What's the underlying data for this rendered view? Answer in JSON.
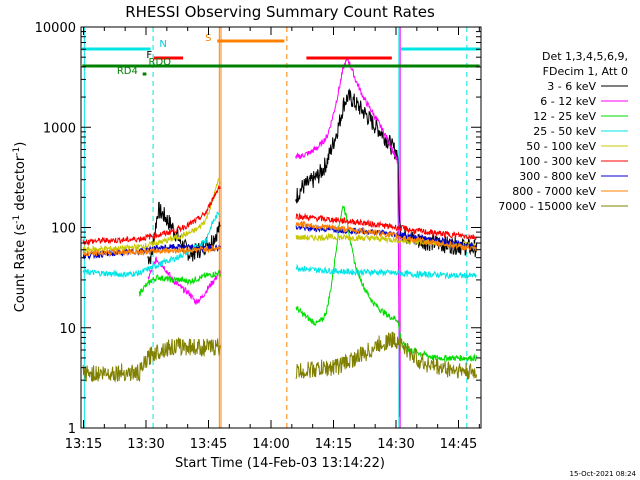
{
  "chart_data": {
    "type": "line",
    "title": "RHESSI Observing Summary Count Rates",
    "xlabel": "Start Time (14-Feb-03 13:14:22)",
    "ylabel_main": "Count Rate (s",
    "ylabel_sup": "-1",
    "ylabel_mid": " detector",
    "ylabel_end": ")",
    "x_unit": "minutes since 13:14:22",
    "xlim": [
      0,
      96
    ],
    "ylim": [
      1,
      10000
    ],
    "y_scale": "log",
    "x_ticks": [
      {
        "t": 0.6,
        "label": "13:15"
      },
      {
        "t": 15.6,
        "label": "13:30"
      },
      {
        "t": 30.6,
        "label": "13:45"
      },
      {
        "t": 45.6,
        "label": "14:00"
      },
      {
        "t": 60.6,
        "label": "14:15"
      },
      {
        "t": 75.6,
        "label": "14:30"
      },
      {
        "t": 90.6,
        "label": "14:45"
      }
    ],
    "y_ticks": [
      {
        "v": 1,
        "label": "1"
      },
      {
        "v": 10,
        "label": "10"
      },
      {
        "v": 100,
        "label": "100"
      },
      {
        "v": 1000,
        "label": "1000"
      },
      {
        "v": 10000,
        "label": "10000"
      }
    ],
    "legend_header": [
      "Det 1,3,4,5,6,9,",
      "FDecim 1, Att 0"
    ],
    "legend_placement": "right",
    "footer_date": "15-Oct-2021 08:24",
    "gaps": [
      [
        33.5,
        51.5
      ]
    ],
    "series": [
      {
        "name": "3 - 6 keV",
        "color": "#000000",
        "points": [
          [
            16,
            50
          ],
          [
            17,
            52
          ],
          [
            17.5,
            80
          ],
          [
            18.5,
            150
          ],
          [
            20,
            130
          ],
          [
            22,
            100
          ],
          [
            24,
            70
          ],
          [
            26,
            55
          ],
          [
            28,
            58
          ],
          [
            30,
            68
          ],
          [
            31.5,
            75
          ],
          [
            33,
            95
          ],
          [
            51.5,
            200
          ],
          [
            53,
            250
          ],
          [
            55,
            280
          ],
          [
            57,
            330
          ],
          [
            58,
            380
          ],
          [
            59,
            450
          ],
          [
            60,
            600
          ],
          [
            61,
            800
          ],
          [
            62,
            1100
          ],
          [
            63,
            1700
          ],
          [
            64,
            2000
          ],
          [
            65,
            1900
          ],
          [
            66,
            1700
          ],
          [
            68,
            1400
          ],
          [
            70,
            1100
          ],
          [
            72,
            900
          ],
          [
            74,
            700
          ],
          [
            75,
            600
          ],
          [
            76,
            550
          ],
          [
            76.5,
            100
          ],
          [
            77,
            90
          ],
          [
            80,
            75
          ],
          [
            85,
            70
          ],
          [
            90,
            66
          ],
          [
            95,
            62
          ]
        ]
      },
      {
        "name": "6 - 12 keV",
        "color": "#ff00ff",
        "points": [
          [
            16,
            30
          ],
          [
            17,
            38
          ],
          [
            18,
            48
          ],
          [
            20,
            40
          ],
          [
            22,
            30
          ],
          [
            24,
            25
          ],
          [
            26,
            22
          ],
          [
            27.5,
            18
          ],
          [
            29,
            20
          ],
          [
            30.5,
            25
          ],
          [
            32,
            30
          ],
          [
            51.5,
            500
          ],
          [
            53,
            520
          ],
          [
            55,
            560
          ],
          [
            57,
            640
          ],
          [
            59,
            800
          ],
          [
            60,
            1100
          ],
          [
            61,
            1600
          ],
          [
            62,
            2500
          ],
          [
            63,
            4000
          ],
          [
            64,
            4800
          ],
          [
            65,
            3800
          ],
          [
            66,
            2900
          ],
          [
            68,
            1900
          ],
          [
            70,
            1400
          ],
          [
            72,
            1000
          ],
          [
            74,
            700
          ],
          [
            75.5,
            500
          ],
          [
            76,
            450
          ],
          [
            76.5,
            1
          ]
        ]
      },
      {
        "name": "12 - 25 keV",
        "color": "#00dd00",
        "points": [
          [
            14,
            22
          ],
          [
            15,
            25
          ],
          [
            16,
            27
          ],
          [
            17,
            30
          ],
          [
            18.5,
            32
          ],
          [
            20,
            31
          ],
          [
            22,
            30
          ],
          [
            24,
            30
          ],
          [
            26,
            29
          ],
          [
            28,
            31
          ],
          [
            30,
            33
          ],
          [
            33,
            35
          ],
          [
            51.5,
            16
          ],
          [
            53,
            14
          ],
          [
            55,
            12
          ],
          [
            56.5,
            11
          ],
          [
            58,
            12
          ],
          [
            59,
            15
          ],
          [
            60,
            25
          ],
          [
            61,
            50
          ],
          [
            62,
            110
          ],
          [
            63,
            170
          ],
          [
            64,
            110
          ],
          [
            65,
            60
          ],
          [
            66,
            40
          ],
          [
            68,
            25
          ],
          [
            70,
            18
          ],
          [
            72,
            15
          ],
          [
            74,
            13
          ],
          [
            76,
            12
          ],
          [
            76.5,
            9
          ],
          [
            77,
            7
          ],
          [
            79,
            6
          ],
          [
            85,
            5
          ],
          [
            90,
            5
          ],
          [
            95,
            5
          ]
        ]
      },
      {
        "name": "25 - 50 keV",
        "color": "#00e5e5",
        "points": [
          [
            0.5,
            36
          ],
          [
            5,
            35
          ],
          [
            10,
            34
          ],
          [
            14,
            35
          ],
          [
            17,
            40
          ],
          [
            20,
            45
          ],
          [
            23,
            50
          ],
          [
            26,
            58
          ],
          [
            28,
            65
          ],
          [
            30,
            75
          ],
          [
            31.5,
            110
          ],
          [
            33,
            140
          ],
          [
            51.5,
            40
          ],
          [
            55,
            38
          ],
          [
            60,
            37
          ],
          [
            65,
            36
          ],
          [
            70,
            36
          ],
          [
            76,
            35
          ],
          [
            80,
            34
          ],
          [
            85,
            34
          ],
          [
            90,
            33
          ],
          [
            95,
            33
          ]
        ]
      },
      {
        "name": "50 - 100 keV",
        "color": "#c8c800",
        "points": [
          [
            0.5,
            60
          ],
          [
            5,
            61
          ],
          [
            10,
            62
          ],
          [
            14,
            64
          ],
          [
            17,
            68
          ],
          [
            20,
            73
          ],
          [
            23,
            80
          ],
          [
            26,
            88
          ],
          [
            28,
            97
          ],
          [
            30,
            120
          ],
          [
            31.5,
            180
          ],
          [
            33,
            300
          ],
          [
            51.5,
            80
          ],
          [
            55,
            79
          ],
          [
            60,
            80
          ],
          [
            65,
            79
          ],
          [
            70,
            78
          ],
          [
            76,
            75
          ],
          [
            80,
            72
          ],
          [
            85,
            70
          ],
          [
            90,
            68
          ],
          [
            95,
            66
          ]
        ]
      },
      {
        "name": "100 - 300 keV",
        "color": "#ff0000",
        "points": [
          [
            0.5,
            72
          ],
          [
            5,
            74
          ],
          [
            10,
            75
          ],
          [
            14,
            77
          ],
          [
            17,
            82
          ],
          [
            20,
            87
          ],
          [
            23,
            95
          ],
          [
            26,
            107
          ],
          [
            28,
            120
          ],
          [
            30,
            140
          ],
          [
            31.5,
            190
          ],
          [
            33,
            250
          ],
          [
            51.5,
            130
          ],
          [
            55,
            125
          ],
          [
            60,
            120
          ],
          [
            65,
            115
          ],
          [
            70,
            108
          ],
          [
            76,
            100
          ],
          [
            80,
            93
          ],
          [
            85,
            88
          ],
          [
            90,
            84
          ],
          [
            95,
            80
          ]
        ]
      },
      {
        "name": "300 - 800 keV",
        "color": "#0000cc",
        "points": [
          [
            0.5,
            52
          ],
          [
            5,
            54
          ],
          [
            10,
            56
          ],
          [
            14,
            58
          ],
          [
            17,
            61
          ],
          [
            20,
            63
          ],
          [
            23,
            64
          ],
          [
            26,
            63
          ],
          [
            28,
            62
          ],
          [
            30,
            62
          ],
          [
            33,
            63
          ],
          [
            51.5,
            100
          ],
          [
            55,
            98
          ],
          [
            60,
            96
          ],
          [
            65,
            93
          ],
          [
            70,
            90
          ],
          [
            76,
            85
          ],
          [
            80,
            80
          ],
          [
            85,
            75
          ],
          [
            90,
            70
          ],
          [
            95,
            65
          ]
        ]
      },
      {
        "name": "800 - 7000 keV",
        "color": "#ff8000",
        "points": [
          [
            0.5,
            55
          ],
          [
            5,
            56
          ],
          [
            10,
            57
          ],
          [
            14,
            57
          ],
          [
            17,
            58
          ],
          [
            20,
            59
          ],
          [
            23,
            59
          ],
          [
            26,
            60
          ],
          [
            28,
            60
          ],
          [
            30,
            61
          ],
          [
            33,
            62
          ],
          [
            51.5,
            110
          ],
          [
            55,
            105
          ],
          [
            60,
            100
          ],
          [
            65,
            95
          ],
          [
            70,
            90
          ],
          [
            76,
            82
          ],
          [
            80,
            75
          ],
          [
            85,
            70
          ],
          [
            90,
            66
          ],
          [
            95,
            60
          ]
        ]
      },
      {
        "name": "7000 - 15000 keV",
        "color": "#808000",
        "points": [
          [
            0.5,
            3.5
          ],
          [
            5,
            3.5
          ],
          [
            10,
            3.6
          ],
          [
            14,
            3.5
          ],
          [
            15.5,
            4.5
          ],
          [
            17,
            5.5
          ],
          [
            20,
            6.2
          ],
          [
            23,
            6.5
          ],
          [
            26,
            6.5
          ],
          [
            28,
            6.4
          ],
          [
            30,
            6.3
          ],
          [
            33,
            6.5
          ],
          [
            51.5,
            3.6
          ],
          [
            55,
            3.8
          ],
          [
            60,
            4
          ],
          [
            62,
            4.2
          ],
          [
            64,
            4.6
          ],
          [
            66,
            5
          ],
          [
            68,
            5.5
          ],
          [
            70,
            6.2
          ],
          [
            72,
            7
          ],
          [
            74,
            7.5
          ],
          [
            76,
            7.5
          ],
          [
            78,
            6
          ],
          [
            82,
            4.5
          ],
          [
            86,
            4
          ],
          [
            90,
            3.8
          ],
          [
            95,
            3.5
          ]
        ]
      }
    ],
    "vertical_lines": [
      {
        "t": 17.3,
        "color": "#00e5e5",
        "dash": true
      },
      {
        "t": 92.6,
        "color": "#00e5e5",
        "dash": true
      },
      {
        "t": 33.2,
        "color": "#ff8000",
        "dash": false
      },
      {
        "t": 33.6,
        "color": "#ff8000",
        "dash": false
      },
      {
        "t": 49.4,
        "color": "#ff8000",
        "dash": true
      },
      {
        "t": 0.8,
        "color": "#00e5e5",
        "dash": false
      },
      {
        "t": 76.3,
        "color": "#00e5e5",
        "dash": false
      },
      {
        "t": 76.6,
        "color": "#ff00ff",
        "dash": false
      }
    ],
    "flag_bars": [
      {
        "label": "N",
        "label_t": 18.8,
        "label_y": 47,
        "color": "#00e5e5",
        "y": 49,
        "segments": [
          [
            0.3,
            16.7
          ],
          [
            76.8,
            95.7
          ]
        ]
      },
      {
        "label": "S",
        "label_t": 29.8,
        "label_y": 41,
        "color": "#ff8000",
        "y": 41,
        "segments": [
          [
            32.7,
            48.8
          ]
        ]
      },
      {
        "label": "F",
        "label_t": 15.7,
        "label_y": 58,
        "color": "#000000",
        "y": 0,
        "segments": []
      },
      {
        "label": "",
        "label_t": 0,
        "label_y": 0,
        "color": "#ff0000",
        "y": 58,
        "segments": [
          [
            17.5,
            24.5
          ],
          [
            54.1,
            74.6
          ]
        ]
      },
      {
        "label": "RDO",
        "label_t": 16.2,
        "label_y": 65,
        "color": "#008000",
        "y": 66,
        "segments": [
          [
            0.3,
            95.7
          ]
        ]
      },
      {
        "label": "RD4",
        "label_t": 8.6,
        "label_y": 74,
        "color": "#008000",
        "y": 74,
        "segments": [
          [
            14.8,
            15.7
          ]
        ]
      }
    ]
  }
}
